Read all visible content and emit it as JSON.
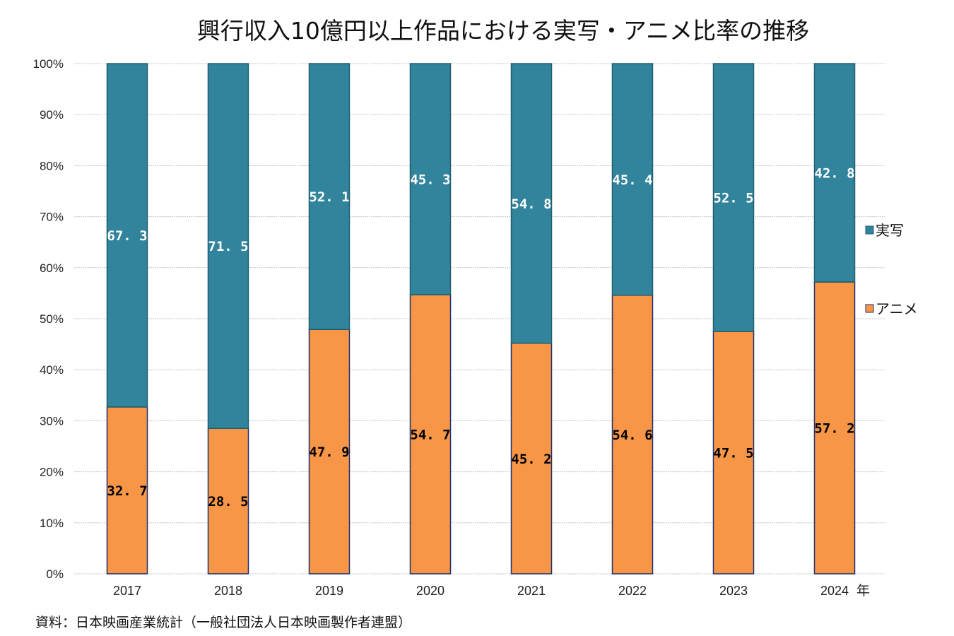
{
  "chart_data": {
    "type": "bar",
    "stacked": true,
    "title": "興行収入10億円以上作品における実写・アニメ比率の推移",
    "categories": [
      "2017",
      "2018",
      "2019",
      "2020",
      "2021",
      "2022",
      "2023",
      "2024"
    ],
    "x_unit": "年",
    "series": [
      {
        "name": "アニメ",
        "color": "#F79646",
        "values": [
          32.7,
          28.5,
          47.9,
          54.7,
          45.2,
          54.6,
          47.5,
          57.2
        ],
        "label_color": "#000000"
      },
      {
        "name": "実写",
        "color": "#31849B",
        "values": [
          67.3,
          71.5,
          52.1,
          45.3,
          54.8,
          45.4,
          52.5,
          42.8
        ],
        "label_color": "#FFFFFF"
      }
    ],
    "ylim": [
      0,
      100
    ],
    "yticks": [
      "0%",
      "10%",
      "20%",
      "30%",
      "40%",
      "50%",
      "60%",
      "70%",
      "80%",
      "90%",
      "100%"
    ],
    "grid": true,
    "legend_position": "right",
    "source": "資料：日本映画産業統計（一般社団法人日本映画製作者連盟）"
  }
}
